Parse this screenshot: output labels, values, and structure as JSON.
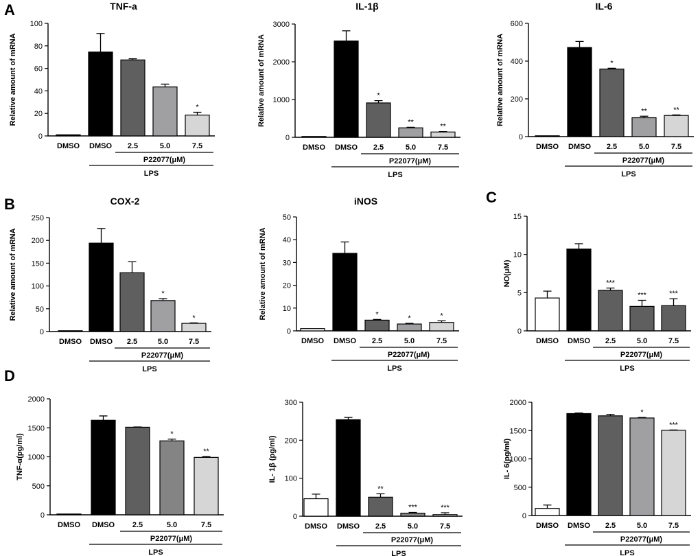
{
  "panel_labels": [
    "A",
    "B",
    "C",
    "D"
  ],
  "group_labels": {
    "treatment": "P22077(μM)",
    "stimulus": "LPS"
  },
  "colors": {
    "white": "#ffffff",
    "black": "#000000",
    "dark_gray": "#5f5f5f",
    "mid_gray": "#a0a0a2",
    "light_gray": "#d6d6d6",
    "mid_gray_d": "#848484"
  },
  "chart_data": [
    {
      "id": "a-tnf",
      "type": "bar",
      "title": "TNF-a",
      "ylabel": "Relative amount of mRNA",
      "categories": [
        "DMSO",
        "DMSO",
        "2.5",
        "5.0",
        "7.5"
      ],
      "values": [
        1,
        74.5,
        67.5,
        43.5,
        18.5
      ],
      "errors": [
        0,
        16.5,
        1,
        2.5,
        2.5
      ],
      "significance": [
        "",
        "",
        "",
        "",
        "*"
      ],
      "ylim": [
        0,
        100
      ],
      "yticks": [
        0,
        20,
        40,
        60,
        80,
        100
      ],
      "fills": [
        "black",
        "black",
        "dark_gray",
        "mid_gray",
        "light_gray"
      ]
    },
    {
      "id": "a-il1b",
      "type": "bar",
      "title": "IL-1β",
      "ylabel": "Relative amount of mRNA",
      "categories": [
        "DMSO",
        "DMSO",
        "2.5",
        "5.0",
        "7.5"
      ],
      "values": [
        2,
        2550,
        910,
        250,
        140
      ],
      "errors": [
        0,
        270,
        60,
        15,
        12
      ],
      "significance": [
        "",
        "",
        "*",
        "**",
        "**"
      ],
      "ylim": [
        0,
        3000
      ],
      "yticks": [
        0,
        1000,
        2000,
        3000
      ],
      "fills": [
        "black",
        "black",
        "dark_gray",
        "mid_gray",
        "light_gray"
      ]
    },
    {
      "id": "a-il6",
      "type": "bar",
      "title": "IL-6",
      "ylabel": "Relative amount of mRNA",
      "categories": [
        "DMSO",
        "DMSO",
        "2.5",
        "5.0",
        "7.5"
      ],
      "values": [
        1,
        472,
        358,
        100,
        112
      ],
      "errors": [
        0,
        32,
        4,
        8,
        3
      ],
      "significance": [
        "",
        "",
        "*",
        "**",
        "**"
      ],
      "ylim": [
        0,
        600
      ],
      "yticks": [
        0,
        200,
        400,
        600
      ],
      "fills": [
        "black",
        "black",
        "dark_gray",
        "mid_gray",
        "light_gray"
      ]
    },
    {
      "id": "b-cox2",
      "type": "bar",
      "title": "COX-2",
      "ylabel": "Relative amount of mRNA",
      "categories": [
        "DMSO",
        "DMSO",
        "2.5",
        "5.0",
        "7.5"
      ],
      "values": [
        1,
        194,
        129,
        68,
        18
      ],
      "errors": [
        0,
        32,
        24,
        4,
        1
      ],
      "significance": [
        "",
        "",
        "",
        "*",
        "*"
      ],
      "ylim": [
        0,
        250
      ],
      "yticks": [
        0,
        50,
        100,
        150,
        200,
        250
      ],
      "fills": [
        "black",
        "black",
        "dark_gray",
        "mid_gray",
        "light_gray"
      ]
    },
    {
      "id": "b-inos",
      "type": "bar",
      "title": "iNOS",
      "ylabel": "Relative amount of mRNA",
      "categories": [
        "DMSO",
        "DMSO",
        "2.5",
        "5.0",
        "7.5"
      ],
      "values": [
        1,
        34,
        4.7,
        3,
        3.7
      ],
      "errors": [
        0,
        5,
        0.3,
        0.3,
        0.7
      ],
      "significance": [
        "",
        "",
        "*",
        "*",
        "*"
      ],
      "ylim": [
        0,
        50
      ],
      "yticks": [
        0,
        10,
        20,
        30,
        40,
        50
      ],
      "fills": [
        "white",
        "black",
        "dark_gray",
        "mid_gray",
        "light_gray"
      ]
    },
    {
      "id": "c-no",
      "type": "bar",
      "title": "",
      "ylabel": "NO(μM)",
      "categories": [
        "DMSO",
        "DMSO",
        "2.5",
        "5.0",
        "7.5"
      ],
      "values": [
        4.3,
        10.7,
        5.3,
        3.2,
        3.3
      ],
      "errors": [
        0.9,
        0.7,
        0.3,
        0.8,
        0.9
      ],
      "significance": [
        "",
        "",
        "***",
        "***",
        "***"
      ],
      "ylim": [
        0,
        15
      ],
      "yticks": [
        0,
        5,
        10,
        15
      ],
      "fills": [
        "white",
        "black",
        "dark_gray",
        "dark_gray",
        "dark_gray"
      ]
    },
    {
      "id": "d-tnf",
      "type": "bar",
      "title": "",
      "ylabel": "TNF-α(pg/ml)",
      "categories": [
        "DMSO",
        "DMSO",
        "2.5",
        "5.0",
        "7.5"
      ],
      "values": [
        8,
        1630,
        1510,
        1275,
        990
      ],
      "errors": [
        0,
        75,
        5,
        30,
        15
      ],
      "significance": [
        "",
        "",
        "",
        "*",
        "**"
      ],
      "ylim": [
        0,
        2000
      ],
      "yticks": [
        0,
        500,
        1000,
        1500,
        2000
      ],
      "fills": [
        "black",
        "black",
        "dark_gray",
        "mid_gray_d",
        "light_gray"
      ]
    },
    {
      "id": "d-il1b",
      "type": "bar",
      "title": "",
      "ylabel": "IL- 1β (pg/ml)",
      "categories": [
        "DMSO",
        "DMSO",
        "2.5",
        "5.0",
        "7.5"
      ],
      "values": [
        46,
        254,
        50,
        8,
        4
      ],
      "errors": [
        12,
        6,
        9,
        2,
        5
      ],
      "significance": [
        "",
        "",
        "**",
        "***",
        "***"
      ],
      "ylim": [
        0,
        300
      ],
      "yticks": [
        0,
        100,
        200,
        300
      ],
      "fills": [
        "white",
        "black",
        "dark_gray",
        "mid_gray_d",
        "light_gray"
      ]
    },
    {
      "id": "d-il6",
      "type": "bar",
      "title": "",
      "ylabel": "IL- 6(pg/ml)",
      "categories": [
        "DMSO",
        "DMSO",
        "2.5",
        "5.0",
        "7.5"
      ],
      "values": [
        125,
        1800,
        1760,
        1722,
        1505
      ],
      "errors": [
        60,
        10,
        25,
        10,
        5
      ],
      "significance": [
        "",
        "",
        "",
        "*",
        "***"
      ],
      "ylim": [
        0,
        2000
      ],
      "yticks": [
        0,
        500,
        1000,
        1500,
        2000
      ],
      "fills": [
        "white",
        "black",
        "dark_gray",
        "mid_gray",
        "light_gray"
      ]
    }
  ]
}
